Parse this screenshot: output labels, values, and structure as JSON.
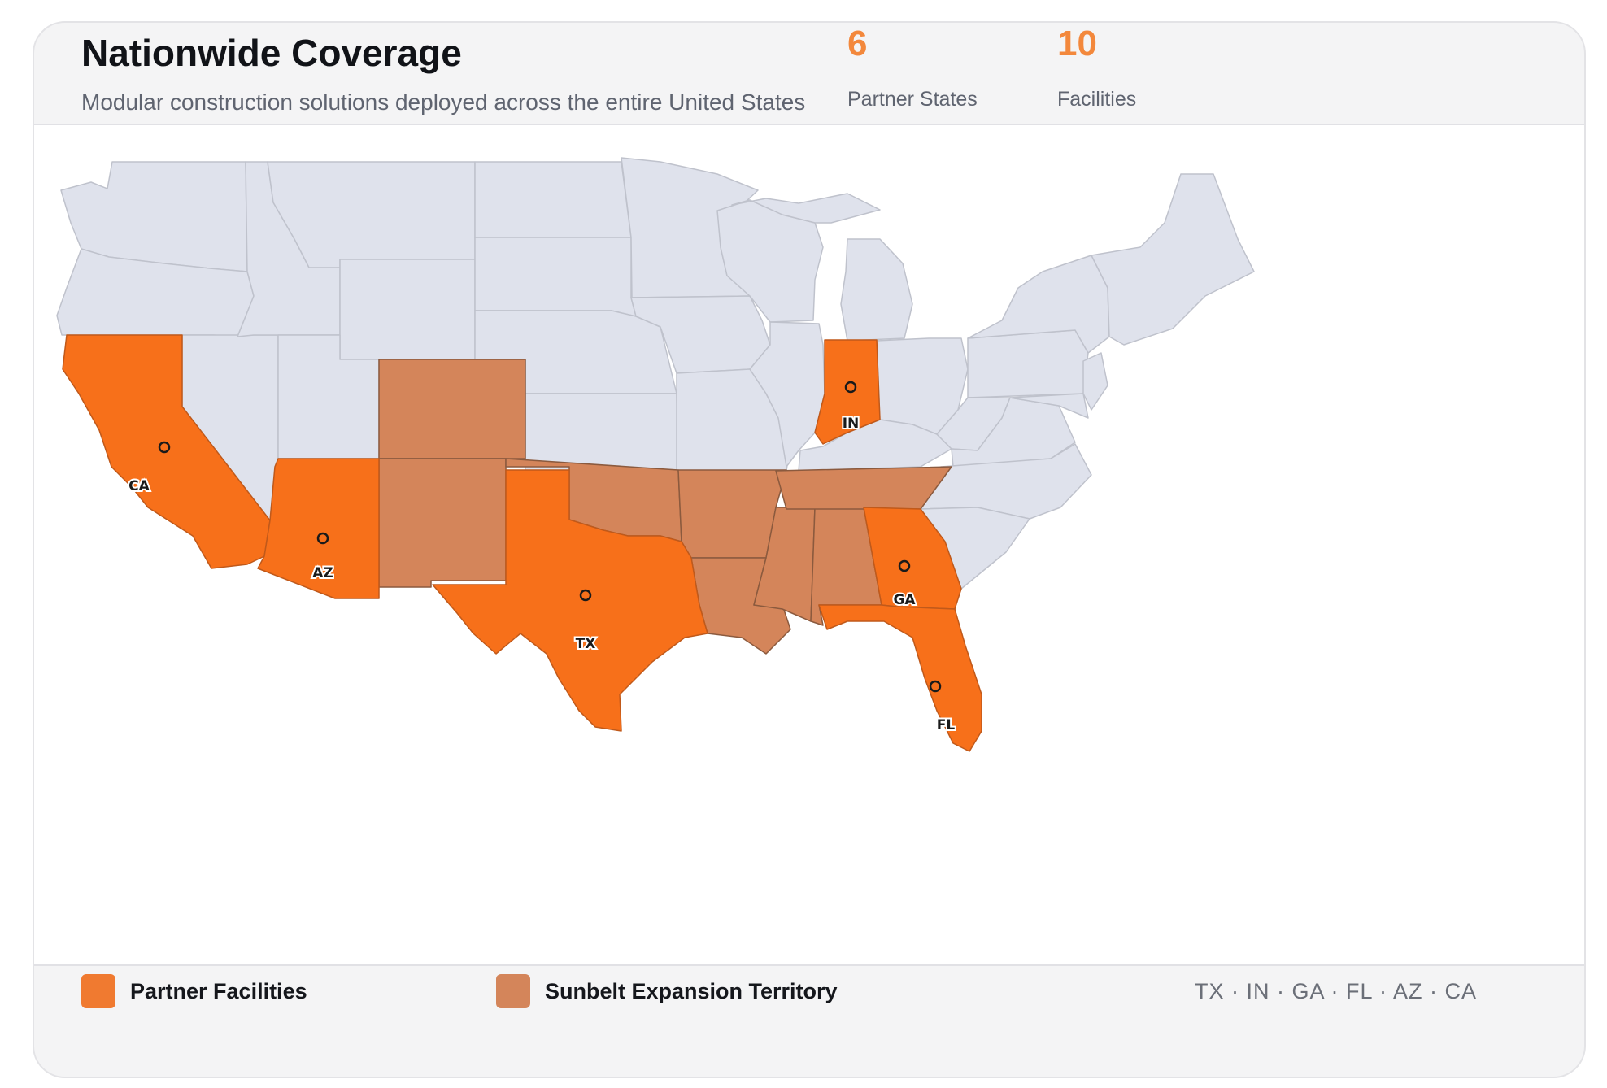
{
  "header": {
    "title": "Nationwide Coverage",
    "subtitle": "Modular construction solutions deployed across the entire United States"
  },
  "stats": [
    {
      "value": "6",
      "label": "Partner States"
    },
    {
      "value": "10",
      "label": "Facilities"
    }
  ],
  "colors": {
    "partner": "#f7701a",
    "expansion": "#d4855a",
    "other": "#dfe2ec",
    "border": "#bfc2cc",
    "accent": "#f3883c"
  },
  "map": {
    "partner_states": [
      "CA",
      "AZ",
      "TX",
      "IN",
      "GA",
      "FL"
    ],
    "expansion_states": [
      "CO",
      "NM",
      "OK",
      "AR",
      "LA",
      "MS",
      "AL",
      "TN"
    ],
    "labels": [
      {
        "code": "CA",
        "text": "CA"
      },
      {
        "code": "AZ",
        "text": "AZ"
      },
      {
        "code": "TX",
        "text": "TX"
      },
      {
        "code": "IN",
        "text": "IN"
      },
      {
        "code": "GA",
        "text": "GA"
      },
      {
        "code": "FL",
        "text": "FL"
      }
    ]
  },
  "legend": {
    "partner_label": "Partner Facilities",
    "expansion_label": "Sunbelt Expansion Territory",
    "state_list": "TX · IN · GA · FL · AZ · CA"
  }
}
